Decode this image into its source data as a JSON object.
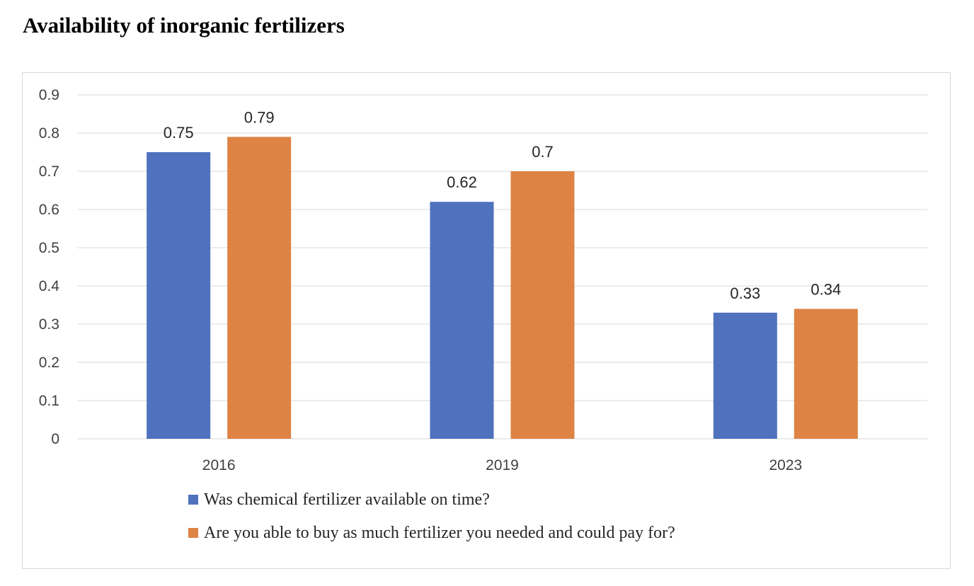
{
  "page": {
    "title": "Availability of inorganic fertilizers"
  },
  "chart_data": {
    "type": "bar",
    "title": "",
    "xlabel": "",
    "ylabel": "",
    "categories": [
      "2016",
      "2019",
      "2023"
    ],
    "series": [
      {
        "name": "Was chemical fertilizer available on time?",
        "color": "#4F71BE",
        "values": [
          0.75,
          0.62,
          0.33
        ],
        "labels": [
          "0.75",
          "0.62",
          "0.33"
        ]
      },
      {
        "name": "Are you able to buy as much fertilizer you needed and could pay for?",
        "color": "#DE8344",
        "values": [
          0.79,
          0.7,
          0.34
        ],
        "labels": [
          "0.79",
          "0.7",
          "0.34"
        ]
      }
    ],
    "ylim": [
      0,
      0.9
    ],
    "yticks": [
      0,
      0.1,
      0.2,
      0.3,
      0.4,
      0.5,
      0.6,
      0.7,
      0.8,
      0.9
    ],
    "ytick_labels": [
      "0",
      "0.1",
      "0.2",
      "0.3",
      "0.4",
      "0.5",
      "0.6",
      "0.7",
      "0.8",
      "0.9"
    ],
    "grid": true,
    "gridline_color": "#d9d9d9",
    "legend_position": "bottom"
  }
}
